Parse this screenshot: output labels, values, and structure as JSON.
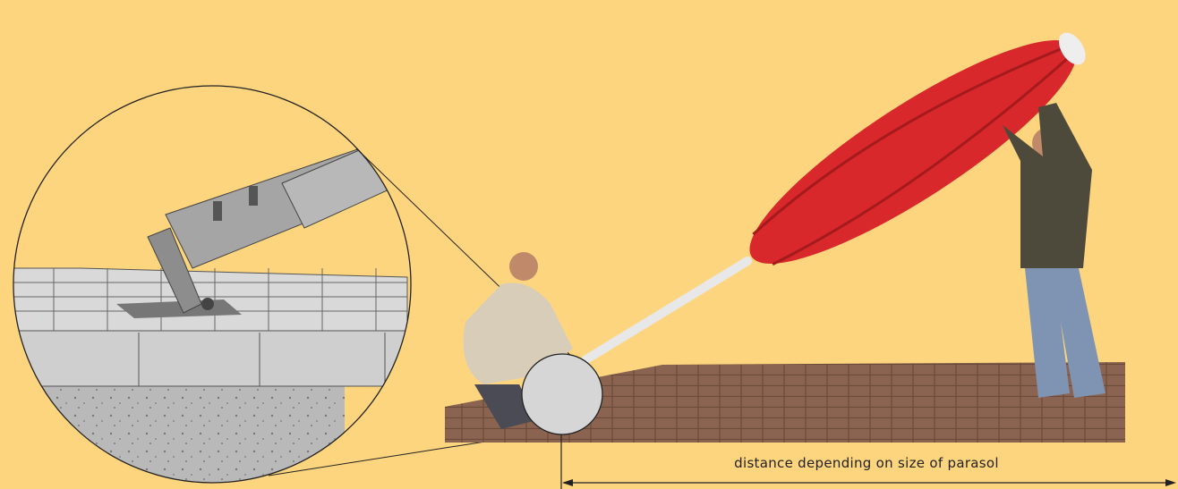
{
  "annotation": {
    "label": "distance depending on size of parasol"
  }
}
